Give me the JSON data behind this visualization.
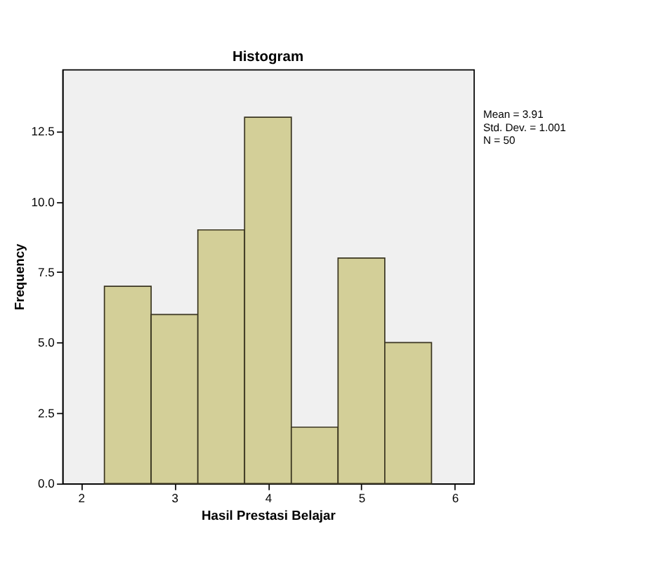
{
  "chart_data": {
    "type": "histogram",
    "title": "Histogram",
    "xlabel": "Hasil Prestasi Belajar",
    "ylabel": "Frequency",
    "bins": [
      2.25,
      2.75,
      3.25,
      3.75,
      4.25,
      4.75,
      5.25,
      5.75
    ],
    "values": [
      7,
      6,
      9,
      13,
      2,
      8,
      5
    ],
    "color": "#d3cf98",
    "xlim": [
      1.8,
      6.2
    ],
    "xticks": [
      2,
      3,
      4,
      5,
      6
    ],
    "ylim": [
      0,
      14.7
    ],
    "yticks": [
      {
        "value": 0,
        "label": "0.0"
      },
      {
        "value": 2.5,
        "label": "2.5"
      },
      {
        "value": 5,
        "label": "5.0"
      },
      {
        "value": 7.5,
        "label": "7.5"
      },
      {
        "value": 10,
        "label": "10.0"
      },
      {
        "value": 12.5,
        "label": "12.5"
      }
    ],
    "grid": false,
    "annotations": [
      "Mean = 3.91",
      "Std. Dev. = 1.001",
      "N = 50"
    ]
  }
}
